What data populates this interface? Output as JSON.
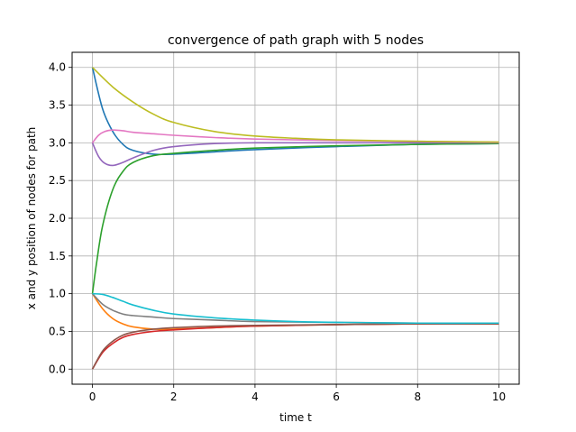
{
  "chart_data": {
    "type": "line",
    "title": "convergence of path graph with 5 nodes",
    "xlabel": "time t",
    "ylabel": "x and y position of nodes for path",
    "xlim": [
      -0.5,
      10.5
    ],
    "ylim": [
      -0.2,
      4.2
    ],
    "xticks": [
      0,
      2,
      4,
      6,
      8,
      10
    ],
    "xtick_labels": [
      "0",
      "2",
      "4",
      "6",
      "8",
      "10"
    ],
    "yticks": [
      0.0,
      0.5,
      1.0,
      1.5,
      2.0,
      2.5,
      3.0,
      3.5,
      4.0
    ],
    "ytick_labels": [
      "0.0",
      "0.5",
      "1.0",
      "1.5",
      "2.0",
      "2.5",
      "3.0",
      "3.5",
      "4.0"
    ],
    "grid": true,
    "series": [
      {
        "color": "#1f77b4",
        "x": [
          0,
          0.25,
          0.5,
          0.75,
          1,
          1.5,
          2,
          3,
          4,
          6,
          8,
          10
        ],
        "y": [
          4.0,
          3.45,
          3.15,
          2.98,
          2.9,
          2.85,
          2.85,
          2.88,
          2.91,
          2.95,
          2.98,
          2.99
        ]
      },
      {
        "color": "#ff7f0e",
        "x": [
          0,
          0.25,
          0.5,
          0.75,
          1,
          1.5,
          2,
          3,
          4,
          6,
          8,
          10
        ],
        "y": [
          1.0,
          0.8,
          0.67,
          0.6,
          0.56,
          0.53,
          0.53,
          0.55,
          0.57,
          0.59,
          0.6,
          0.6
        ]
      },
      {
        "color": "#2ca02c",
        "x": [
          0,
          0.1,
          0.25,
          0.5,
          0.75,
          1,
          1.5,
          2,
          3,
          4,
          6,
          8,
          10
        ],
        "y": [
          1.0,
          1.4,
          1.9,
          2.38,
          2.62,
          2.74,
          2.83,
          2.86,
          2.9,
          2.93,
          2.96,
          2.98,
          2.99
        ]
      },
      {
        "color": "#d62728",
        "x": [
          0,
          0.25,
          0.5,
          0.75,
          1,
          1.5,
          2,
          3,
          4,
          6,
          8,
          10
        ],
        "y": [
          0.0,
          0.22,
          0.34,
          0.42,
          0.46,
          0.5,
          0.52,
          0.55,
          0.57,
          0.59,
          0.6,
          0.6
        ]
      },
      {
        "color": "#9467bd",
        "x": [
          0,
          0.15,
          0.3,
          0.5,
          0.75,
          1,
          1.5,
          2,
          3,
          4,
          6,
          8,
          10
        ],
        "y": [
          3.0,
          2.82,
          2.73,
          2.7,
          2.74,
          2.8,
          2.9,
          2.95,
          2.99,
          3.0,
          3.0,
          3.0,
          3.0
        ]
      },
      {
        "color": "#8c564b",
        "x": [
          0,
          0.25,
          0.5,
          0.75,
          1,
          1.5,
          2,
          3,
          4,
          6,
          8,
          10
        ],
        "y": [
          0.0,
          0.24,
          0.37,
          0.45,
          0.49,
          0.53,
          0.55,
          0.57,
          0.58,
          0.59,
          0.6,
          0.6
        ]
      },
      {
        "color": "#e377c2",
        "x": [
          0,
          0.15,
          0.3,
          0.5,
          0.75,
          1,
          1.5,
          2,
          3,
          4,
          6,
          8,
          10
        ],
        "y": [
          3.0,
          3.1,
          3.15,
          3.17,
          3.16,
          3.14,
          3.12,
          3.1,
          3.07,
          3.05,
          3.03,
          3.02,
          3.01
        ]
      },
      {
        "color": "#7f7f7f",
        "x": [
          0,
          0.25,
          0.5,
          0.75,
          1,
          1.5,
          2,
          3,
          4,
          6,
          8,
          10
        ],
        "y": [
          1.0,
          0.86,
          0.78,
          0.73,
          0.71,
          0.69,
          0.67,
          0.65,
          0.63,
          0.62,
          0.61,
          0.61
        ]
      },
      {
        "color": "#bcbd22",
        "x": [
          0,
          0.5,
          1,
          1.5,
          2,
          3,
          4,
          5,
          6,
          8,
          10
        ],
        "y": [
          4.0,
          3.74,
          3.54,
          3.38,
          3.27,
          3.15,
          3.09,
          3.06,
          3.04,
          3.02,
          3.01
        ]
      },
      {
        "color": "#17becf",
        "x": [
          0,
          0.25,
          0.5,
          0.75,
          1,
          1.5,
          2,
          3,
          4,
          5,
          6,
          8,
          10
        ],
        "y": [
          1.0,
          0.99,
          0.95,
          0.9,
          0.85,
          0.78,
          0.73,
          0.68,
          0.65,
          0.63,
          0.62,
          0.61,
          0.61
        ]
      }
    ]
  }
}
